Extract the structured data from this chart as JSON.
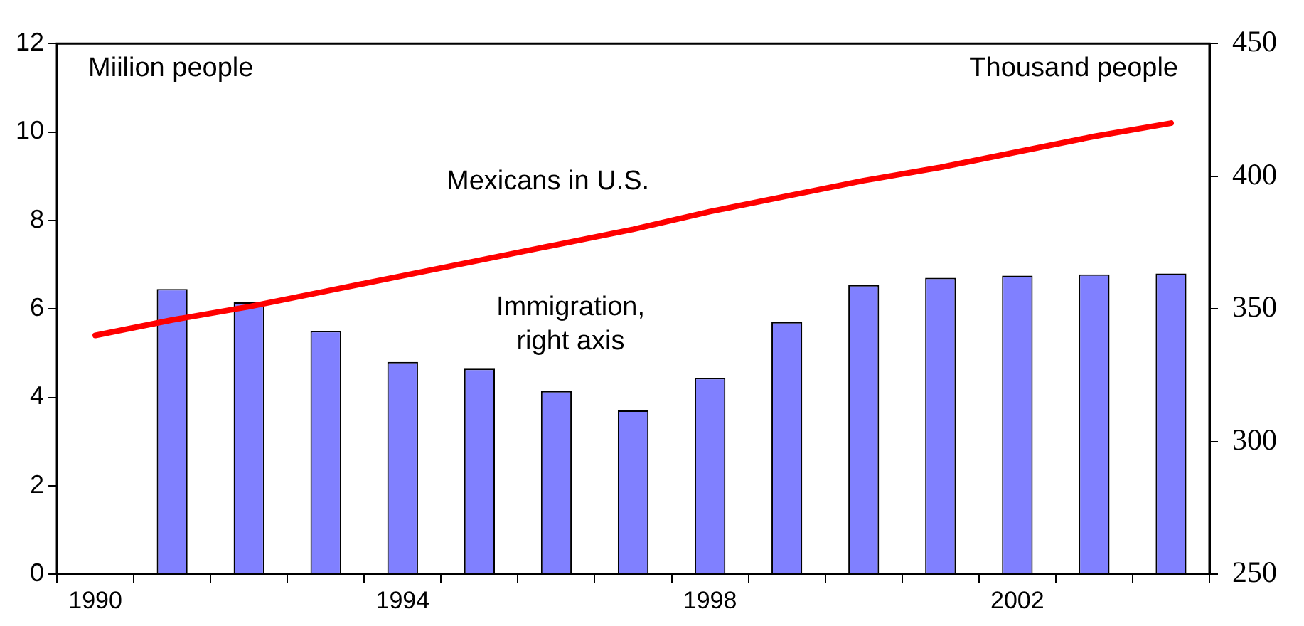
{
  "chart_data": {
    "type": "bar",
    "ylabel": "Miilion people",
    "y2label": "Thousand people",
    "categories": [
      "1990",
      null,
      null,
      null,
      "1994",
      null,
      null,
      null,
      "1998",
      null,
      null,
      null,
      "2002",
      null,
      null
    ],
    "series": [
      {
        "name": "Immigration, right axis",
        "axis": "y2",
        "color": "#8080ff",
        "values": [
          null,
          357.5,
          352.5,
          341.7,
          330,
          327.5,
          319,
          311.7,
          324,
          345,
          359,
          361.7,
          362.5,
          363,
          363.3
        ]
      },
      {
        "name": "Mexicans in U.S.",
        "type": "line",
        "color": "#ff0000",
        "values": [
          5.4,
          5.75,
          6.05,
          6.4,
          6.75,
          7.1,
          7.45,
          7.8,
          8.2,
          8.55,
          8.9,
          9.2,
          9.55,
          9.9,
          10.2
        ]
      }
    ],
    "ylim": [
      0,
      12
    ],
    "yticks": [
      0,
      2,
      4,
      6,
      8,
      10,
      12
    ],
    "y2lim": [
      250,
      450
    ],
    "y2ticks": [
      250,
      300,
      350,
      400,
      450
    ],
    "grid": false,
    "legend": false,
    "marker": "none",
    "line_style": "solid"
  }
}
